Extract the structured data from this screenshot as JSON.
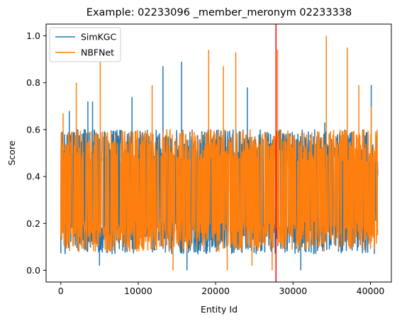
{
  "chart_data": {
    "type": "line",
    "title": "Example: 02233096 _member_meronym 02233338",
    "xlabel": "Entity Id",
    "ylabel": "Score",
    "xlim": [
      -1900,
      42700
    ],
    "ylim": [
      -0.05,
      1.05
    ],
    "x_ticks": [
      0,
      10000,
      20000,
      30000,
      40000
    ],
    "x_tick_labels": [
      "0",
      "10000",
      "20000",
      "30000",
      "40000"
    ],
    "y_ticks": [
      0.0,
      0.2,
      0.4,
      0.6,
      0.8,
      1.0
    ],
    "y_tick_labels": [
      "0.0",
      "0.2",
      "0.4",
      "0.6",
      "0.8",
      "1.0"
    ],
    "grid": false,
    "legend_position": "top-left",
    "x_range": [
      0,
      40943
    ],
    "series": [
      {
        "name": "SimKGC",
        "color": "#1f77b4",
        "band_low": 0.07,
        "band_high": 0.6,
        "peaks": [
          {
            "x": 1100,
            "y": 0.68
          },
          {
            "x": 3500,
            "y": 0.72
          },
          {
            "x": 4100,
            "y": 0.72
          },
          {
            "x": 9200,
            "y": 0.74
          },
          {
            "x": 13200,
            "y": 0.87
          },
          {
            "x": 15600,
            "y": 0.89
          },
          {
            "x": 24100,
            "y": 0.78
          },
          {
            "x": 34100,
            "y": 0.63
          },
          {
            "x": 40100,
            "y": 0.79
          },
          {
            "x": 5000,
            "y": 0.02
          },
          {
            "x": 16300,
            "y": 0.0
          },
          {
            "x": 31000,
            "y": 0.0
          },
          {
            "x": 40500,
            "y": 0.07
          }
        ],
        "tail": {
          "x_start": 39700,
          "low": 0.2,
          "high": 0.54
        }
      },
      {
        "name": "NBFNet",
        "color": "#ff7f0e",
        "band_low": 0.08,
        "band_high": 0.6,
        "peaks": [
          {
            "x": 300,
            "y": 0.67
          },
          {
            "x": 2000,
            "y": 0.8
          },
          {
            "x": 5100,
            "y": 0.89
          },
          {
            "x": 11800,
            "y": 0.79
          },
          {
            "x": 19100,
            "y": 0.94
          },
          {
            "x": 21000,
            "y": 0.87
          },
          {
            "x": 22600,
            "y": 0.93
          },
          {
            "x": 28000,
            "y": 0.94
          },
          {
            "x": 34300,
            "y": 1.0
          },
          {
            "x": 37000,
            "y": 0.95
          },
          {
            "x": 38500,
            "y": 0.79
          },
          {
            "x": 40100,
            "y": 0.7
          },
          {
            "x": 14500,
            "y": 0.0
          },
          {
            "x": 21500,
            "y": 0.0
          },
          {
            "x": 24700,
            "y": 0.02
          },
          {
            "x": 27300,
            "y": 0.0
          }
        ]
      }
    ],
    "vlines": [
      {
        "x": 27800,
        "color": "#ff0000"
      }
    ]
  }
}
